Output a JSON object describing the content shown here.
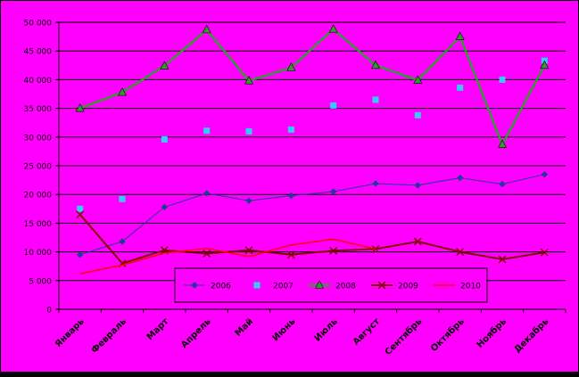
{
  "chart_data": {
    "type": "line",
    "categories": [
      "Январь",
      "Февраль",
      "Март",
      "Апрель",
      "Май",
      "Июнь",
      "Июль",
      "Август",
      "Сентябрь",
      "Октябрь",
      "Ноябрь",
      "Декабрь"
    ],
    "ylim": [
      0,
      50000
    ],
    "yticks": [
      "0",
      "5 000",
      "10 000",
      "15 000",
      "20 000",
      "25 000",
      "30 000",
      "35 000",
      "40 000",
      "45 000",
      "50 000"
    ],
    "grid": true,
    "legend_position": "bottom-center",
    "background_color": "#FF00FF",
    "series": [
      {
        "name": "2006",
        "color": "#1F3C99",
        "marker": "diamond",
        "line": true,
        "values": [
          9500,
          11800,
          17800,
          20200,
          18900,
          19800,
          20500,
          21900,
          21600,
          22900,
          21800,
          23500
        ]
      },
      {
        "name": "2007",
        "color": "#33CCFF",
        "marker": "square",
        "line": false,
        "values": [
          17500,
          19200,
          29600,
          31100,
          31000,
          31300,
          35500,
          36500,
          33800,
          38600,
          40000,
          43300
        ]
      },
      {
        "name": "2008",
        "color": "#339933",
        "marker": "triangle",
        "line": true,
        "values": [
          35000,
          37800,
          42400,
          48700,
          39800,
          42100,
          48800,
          42500,
          39900,
          47500,
          28700,
          42500
        ]
      },
      {
        "name": "2009",
        "color": "#800000",
        "marker": "x",
        "line": true,
        "values": [
          16500,
          8000,
          10300,
          9700,
          10300,
          9500,
          10200,
          10500,
          11800,
          10000,
          8700,
          9900
        ]
      },
      {
        "name": "2010",
        "color": "#FF0000",
        "marker": "none",
        "line": true,
        "values": [
          6200,
          7700,
          9800,
          10600,
          9200,
          11200,
          12200,
          10500,
          null,
          null,
          null,
          null
        ]
      }
    ]
  }
}
